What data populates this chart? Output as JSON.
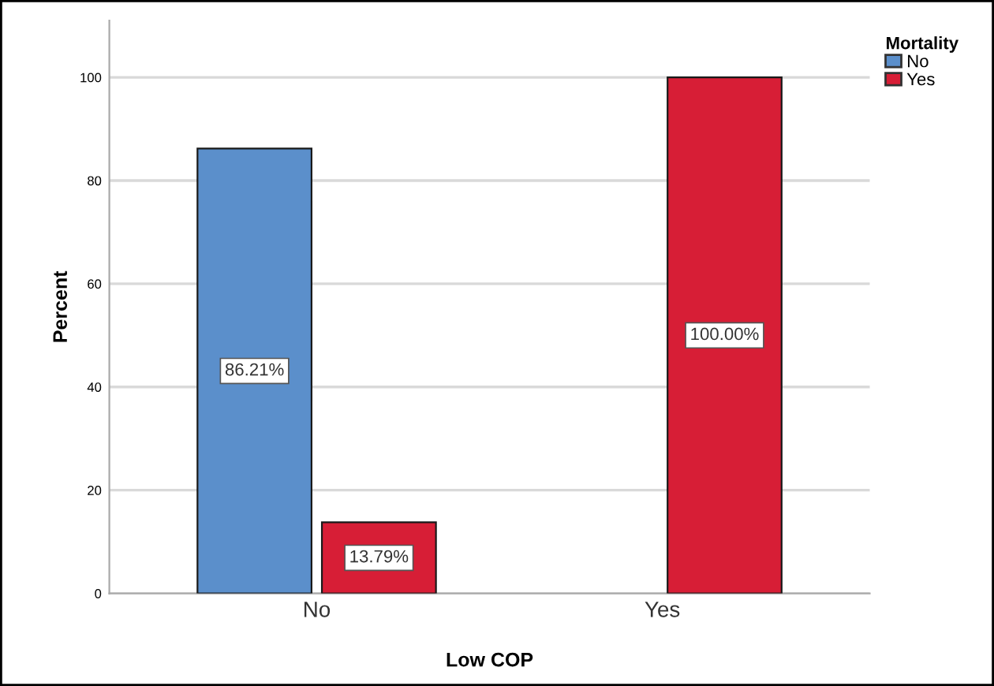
{
  "chart_data": {
    "type": "bar",
    "xlabel": "Low COP",
    "ylabel": "Percent",
    "legend_title": "Mortality",
    "categories": [
      "No",
      "Yes"
    ],
    "series": [
      {
        "name": "No",
        "color": "#5b8fcb",
        "values": [
          86.21,
          null
        ],
        "value_labels": [
          "86.21%",
          null
        ]
      },
      {
        "name": "Yes",
        "color": "#d71e36",
        "values": [
          13.79,
          100.0
        ],
        "value_labels": [
          "13.79%",
          "100.00%"
        ]
      }
    ],
    "ylim": [
      0,
      111
    ],
    "yticks": [
      0,
      20,
      40,
      60,
      80,
      100
    ],
    "grid": "y",
    "legend": "top right"
  }
}
